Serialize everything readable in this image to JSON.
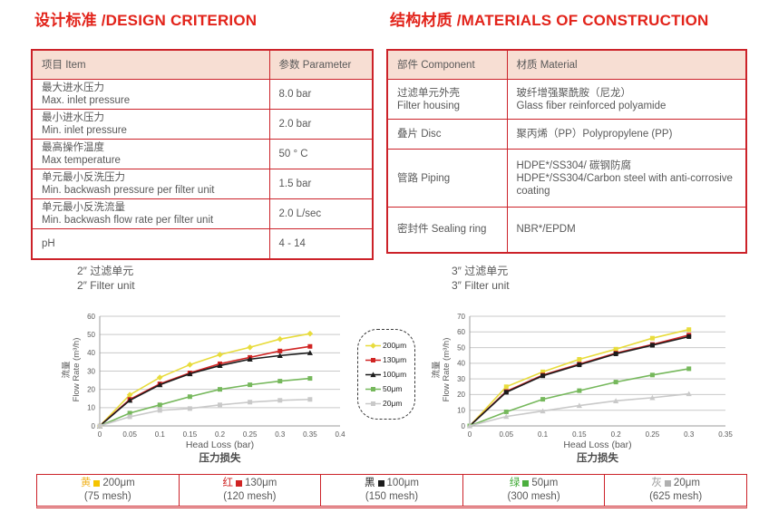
{
  "page": {
    "left_heading": "设计标准 /DESIGN CRITERION",
    "right_heading": "结构材质 /MATERIALS OF CONSTRUCTION"
  },
  "design_table": {
    "headers": [
      "项目 Item",
      "参数 Parameter"
    ],
    "rows": [
      {
        "item": "最大进水压力\nMax. inlet pressure",
        "value": "8.0 bar"
      },
      {
        "item": "最小进水压力\nMin. inlet pressure",
        "value": "2.0 bar"
      },
      {
        "item": "最高操作温度\nMax temperature",
        "value": "50 ° C"
      },
      {
        "item": "单元最小反洗压力\nMin. backwash pressure per filter unit",
        "value": "1.5 bar"
      },
      {
        "item": "单元最小反洗流量\nMin. backwash flow rate per filter unit",
        "value": "2.0 L/sec"
      },
      {
        "item": "pH",
        "value": "4 - 14"
      }
    ]
  },
  "materials_table": {
    "headers": [
      "部件 Component",
      "材质 Material"
    ],
    "rows": [
      {
        "component": "过滤单元外壳\nFilter housing",
        "material": "玻纤增强聚酰胺（尼龙）\nGlass fiber reinforced polyamide"
      },
      {
        "component": "叠片 Disc",
        "material": "聚丙烯（PP）Polypropylene (PP)"
      },
      {
        "component": "管路 Piping",
        "material": "HDPE*/SS304/ 碳钢防腐\nHDPE*/SS304/Carbon steel with anti-corrosive coating"
      },
      {
        "component": "密封件 Sealing ring",
        "material": "NBR*/EPDM"
      }
    ]
  },
  "chart_data": [
    {
      "type": "line",
      "title_cn": "2″ 过滤单元",
      "title_en": "2″ Filter unit",
      "ylabel_cn": "流量",
      "ylabel_en": "Flow Rate (m³/h)",
      "xlabel_en": "Head Loss (bar)",
      "xlabel_cn": "压力损失",
      "ylim": [
        0,
        60
      ],
      "ytick_step": 10,
      "xlim": [
        0,
        0.4
      ],
      "xticks": [
        0,
        0.05,
        0.1,
        0.15,
        0.2,
        0.25,
        0.3,
        0.35,
        0.4
      ],
      "x": [
        0,
        0.05,
        0.1,
        0.15,
        0.2,
        0.25,
        0.3,
        0.35
      ],
      "grid": true,
      "series": [
        {
          "name": "200μm",
          "color": "#e8dc3c",
          "marker": "diamond",
          "values": [
            0,
            17,
            26.5,
            33.5,
            39,
            43,
            47.5,
            50.5
          ]
        },
        {
          "name": "130μm",
          "color": "#d02423",
          "marker": "square",
          "values": [
            0,
            14.5,
            23,
            29,
            34,
            37.5,
            41,
            43.5
          ]
        },
        {
          "name": "100μm",
          "color": "#1c1c1c",
          "marker": "triangle",
          "values": [
            0,
            14,
            22.5,
            28.5,
            33,
            36.5,
            38.5,
            40
          ]
        },
        {
          "name": "50μm",
          "color": "#76b85c",
          "marker": "square",
          "values": [
            0,
            7,
            11.5,
            16,
            20,
            22.5,
            24.5,
            26
          ]
        },
        {
          "name": "20μm",
          "color": "#c9c9c9",
          "marker": "square",
          "values": [
            0,
            5,
            8.5,
            9.5,
            11.5,
            13,
            14,
            14.5
          ]
        }
      ]
    },
    {
      "type": "line",
      "title_cn": "3″ 过滤单元",
      "title_en": "3″ Filter unit",
      "ylabel_cn": "流量",
      "ylabel_en": "Flow Rate (m³/h)",
      "xlabel_en": "Head Loss (bar)",
      "xlabel_cn": "压力损失",
      "ylim": [
        0,
        70
      ],
      "ytick_step": 10,
      "xlim": [
        0,
        0.35
      ],
      "xticks": [
        0,
        0.05,
        0.1,
        0.15,
        0.2,
        0.25,
        0.3,
        0.35
      ],
      "x": [
        0,
        0.05,
        0.1,
        0.15,
        0.2,
        0.25,
        0.3
      ],
      "grid": true,
      "series": [
        {
          "name": "200μm",
          "color": "#e8dc3c",
          "marker": "square",
          "values": [
            0,
            25,
            34.5,
            42.5,
            49,
            56,
            61.5
          ]
        },
        {
          "name": "130μm",
          "color": "#d02423",
          "marker": "square",
          "values": [
            0,
            22,
            32.5,
            39.5,
            46.5,
            52,
            58
          ]
        },
        {
          "name": "100μm",
          "color": "#1c1c1c",
          "marker": "square",
          "values": [
            0,
            21.5,
            32,
            39,
            46,
            51.5,
            57
          ]
        },
        {
          "name": "50μm",
          "color": "#76b85c",
          "marker": "square",
          "values": [
            0,
            9,
            17,
            22.5,
            28,
            32.5,
            36.5
          ]
        },
        {
          "name": "20μm",
          "color": "#c9c9c9",
          "marker": "triangle",
          "values": [
            0,
            6,
            9.5,
            13,
            16,
            18,
            20.5
          ]
        }
      ]
    }
  ],
  "mesh_legend": {
    "items": [
      {
        "cn": "黄",
        "size": "200μm",
        "mesh": "(75 mesh)",
        "char_color": "#f0b323",
        "swatch": "#f5c400"
      },
      {
        "cn": "红",
        "size": "130μm",
        "mesh": "(120 mesh)",
        "char_color": "#d02423",
        "swatch": "#d02423"
      },
      {
        "cn": "黑",
        "size": "100μm",
        "mesh": "(150 mesh)",
        "char_color": "#1c1c1c",
        "swatch": "#1c1c1c"
      },
      {
        "cn": "绿",
        "size": "50μm",
        "mesh": "(300 mesh)",
        "char_color": "#3faa35",
        "swatch": "#4caf3f"
      },
      {
        "cn": "灰",
        "size": "20μm",
        "mesh": "(625 mesh)",
        "char_color": "#9a9a9a",
        "swatch": "#b0b0b0"
      }
    ]
  },
  "colors": {
    "accent_red": "#e2231a",
    "table_border": "#cc2229",
    "table_header_bg": "#f7ded3",
    "body_text": "#595959",
    "gridline": "#c9c9c9"
  }
}
